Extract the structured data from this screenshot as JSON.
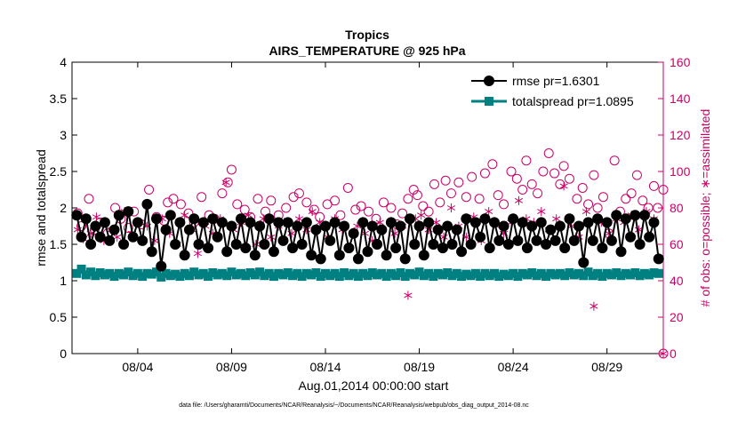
{
  "chart_data": {
    "type": "line",
    "title": "Tropics",
    "subtitle": "AIRS_TEMPERATURE @ 925 hPa",
    "xlabel": "Aug.01,2014 00:00:00 start",
    "ylabel": "rmse and totalspread",
    "y2label": "# of obs: o=possible; ∗=assimilated",
    "xlim": [
      0,
      31.5
    ],
    "ylim": [
      0,
      4
    ],
    "y2lim": [
      0,
      160
    ],
    "x_tick_values": [
      3.5,
      8.5,
      13.5,
      18.5,
      23.5,
      28.5
    ],
    "x_tick_labels": [
      "08/04",
      "08/09",
      "08/14",
      "08/19",
      "08/24",
      "08/29"
    ],
    "y_tick_labels": [
      "0",
      "0.5",
      "1",
      "1.5",
      "2",
      "2.5",
      "3",
      "3.5",
      "4"
    ],
    "y2_tick_labels": [
      "0",
      "20",
      "40",
      "60",
      "80",
      "100",
      "120",
      "140",
      "160"
    ],
    "legend_position": "top-right",
    "series": [
      {
        "name": "rmse pr=1.6301",
        "color": "#000000",
        "marker": "circle",
        "x": [
          0.25,
          0.5,
          0.75,
          1,
          1.25,
          1.5,
          1.75,
          2,
          2.25,
          2.5,
          2.75,
          3,
          3.25,
          3.5,
          3.75,
          4,
          4.25,
          4.5,
          4.75,
          5,
          5.25,
          5.5,
          5.75,
          6,
          6.25,
          6.5,
          6.75,
          7,
          7.25,
          7.5,
          7.75,
          8,
          8.25,
          8.5,
          8.75,
          9,
          9.25,
          9.5,
          9.75,
          10,
          10.25,
          10.5,
          10.75,
          11,
          11.25,
          11.5,
          11.75,
          12,
          12.25,
          12.5,
          12.75,
          13,
          13.25,
          13.5,
          13.75,
          14,
          14.25,
          14.5,
          14.75,
          15,
          15.25,
          15.5,
          15.75,
          16,
          16.25,
          16.5,
          16.75,
          17,
          17.25,
          17.5,
          17.75,
          18,
          18.25,
          18.5,
          18.75,
          19,
          19.25,
          19.5,
          19.75,
          20,
          20.25,
          20.5,
          20.75,
          21,
          21.25,
          21.5,
          21.75,
          22,
          22.25,
          22.5,
          22.75,
          23,
          23.25,
          23.5,
          23.75,
          24,
          24.25,
          24.5,
          24.75,
          25,
          25.25,
          25.5,
          25.75,
          26,
          26.25,
          26.5,
          26.75,
          27,
          27.25,
          27.5,
          27.75,
          28,
          28.25,
          28.5,
          28.75,
          29,
          29.25,
          29.5,
          29.75,
          30,
          30.25,
          30.5,
          30.75,
          31,
          31.25
        ],
        "values": [
          1.9,
          1.6,
          1.85,
          1.5,
          1.75,
          1.6,
          1.8,
          1.55,
          1.7,
          1.9,
          1.5,
          1.95,
          1.6,
          1.8,
          1.55,
          2.05,
          1.4,
          1.85,
          1.2,
          1.7,
          1.9,
          1.5,
          1.8,
          1.35,
          1.7,
          1.85,
          1.5,
          1.8,
          1.45,
          1.85,
          1.6,
          1.8,
          1.4,
          1.75,
          1.5,
          1.85,
          1.45,
          1.8,
          1.35,
          1.75,
          1.5,
          1.85,
          1.4,
          1.8,
          1.55,
          1.8,
          1.45,
          1.75,
          1.5,
          1.8,
          1.35,
          1.7,
          1.3,
          1.75,
          1.55,
          1.8,
          1.35,
          1.75,
          1.45,
          1.65,
          1.3,
          1.8,
          1.4,
          1.75,
          1.5,
          1.7,
          1.35,
          1.8,
          1.45,
          1.75,
          1.3,
          1.85,
          1.5,
          1.75,
          1.35,
          1.8,
          1.5,
          1.7,
          1.45,
          1.75,
          1.5,
          1.7,
          1.4,
          1.85,
          1.5,
          1.8,
          1.6,
          1.85,
          1.45,
          1.8,
          1.55,
          1.75,
          1.5,
          1.85,
          1.55,
          1.8,
          1.45,
          1.75,
          1.55,
          1.8,
          1.5,
          1.7,
          1.55,
          1.75,
          1.45,
          1.85,
          1.55,
          1.75,
          1.25,
          1.8,
          1.55,
          1.85,
          1.45,
          1.8,
          1.55,
          1.9,
          1.4,
          1.85,
          1.6,
          1.9,
          1.5,
          1.9,
          1.6,
          1.8,
          1.3
        ]
      },
      {
        "name": "totalspread pr=1.0895",
        "color": "#008080",
        "marker": "square",
        "x": [
          0.25,
          0.5,
          0.75,
          1,
          1.25,
          1.5,
          1.75,
          2,
          2.25,
          2.5,
          2.75,
          3,
          3.25,
          3.5,
          3.75,
          4,
          4.25,
          4.5,
          4.75,
          5,
          5.25,
          5.5,
          5.75,
          6,
          6.25,
          6.5,
          6.75,
          7,
          7.25,
          7.5,
          7.75,
          8,
          8.25,
          8.5,
          8.75,
          9,
          9.25,
          9.5,
          9.75,
          10,
          10.25,
          10.5,
          10.75,
          11,
          11.25,
          11.5,
          11.75,
          12,
          12.25,
          12.5,
          12.75,
          13,
          13.25,
          13.5,
          13.75,
          14,
          14.25,
          14.5,
          14.75,
          15,
          15.25,
          15.5,
          15.75,
          16,
          16.25,
          16.5,
          16.75,
          17,
          17.25,
          17.5,
          17.75,
          18,
          18.25,
          18.5,
          18.75,
          19,
          19.25,
          19.5,
          19.75,
          20,
          20.25,
          20.5,
          20.75,
          21,
          21.25,
          21.5,
          21.75,
          22,
          22.25,
          22.5,
          22.75,
          23,
          23.25,
          23.5,
          23.75,
          24,
          24.25,
          24.5,
          24.75,
          25,
          25.25,
          25.5,
          25.75,
          26,
          26.25,
          26.5,
          26.75,
          27,
          27.25,
          27.5,
          27.75,
          28,
          28.25,
          28.5,
          28.75,
          29,
          29.25,
          29.5,
          29.75,
          30,
          30.25,
          30.5,
          30.75,
          31,
          31.25
        ],
        "values": [
          1.1,
          1.16,
          1.08,
          1.12,
          1.07,
          1.11,
          1.08,
          1.1,
          1.06,
          1.1,
          1.08,
          1.12,
          1.07,
          1.1,
          1.06,
          1.1,
          1.09,
          1.12,
          1.05,
          1.1,
          1.07,
          1.09,
          1.06,
          1.1,
          1.07,
          1.12,
          1.08,
          1.1,
          1.06,
          1.11,
          1.08,
          1.1,
          1.07,
          1.12,
          1.08,
          1.1,
          1.07,
          1.11,
          1.08,
          1.12,
          1.07,
          1.1,
          1.06,
          1.1,
          1.08,
          1.11,
          1.07,
          1.1,
          1.06,
          1.1,
          1.08,
          1.11,
          1.06,
          1.1,
          1.07,
          1.1,
          1.06,
          1.11,
          1.07,
          1.1,
          1.06,
          1.1,
          1.07,
          1.11,
          1.08,
          1.1,
          1.06,
          1.1,
          1.07,
          1.11,
          1.06,
          1.1,
          1.08,
          1.12,
          1.07,
          1.1,
          1.06,
          1.1,
          1.08,
          1.11,
          1.07,
          1.1,
          1.06,
          1.09,
          1.07,
          1.1,
          1.06,
          1.1,
          1.07,
          1.1,
          1.06,
          1.09,
          1.07,
          1.1,
          1.06,
          1.1,
          1.08,
          1.11,
          1.07,
          1.1,
          1.06,
          1.1,
          1.08,
          1.1,
          1.07,
          1.11,
          1.08,
          1.1,
          1.07,
          1.12,
          1.07,
          1.1,
          1.06,
          1.1,
          1.08,
          1.11,
          1.07,
          1.1,
          1.08,
          1.11,
          1.07,
          1.1,
          1.08,
          1.11,
          1.1
        ]
      },
      {
        "name": "# of obs possible",
        "axis": "right",
        "color": "#cc0066",
        "marker": "open-circle",
        "x": [
          0.3,
          0.5,
          0.9,
          1.2,
          1.5,
          1.9,
          2.3,
          2.6,
          3,
          3.3,
          3.7,
          4.1,
          4.5,
          4.9,
          5.1,
          5.4,
          5.8,
          6.2,
          6.5,
          6.9,
          7.3,
          7.6,
          8,
          8.3,
          8.5,
          8.8,
          9.2,
          9.5,
          9.9,
          10.3,
          10.6,
          11,
          11.4,
          11.8,
          12.1,
          12.5,
          12.9,
          13.2,
          13.6,
          14,
          14.3,
          14.7,
          15.1,
          15.4,
          15.8,
          16.2,
          16.6,
          17,
          17.3,
          17.6,
          17.9,
          18.2,
          18.4,
          18.7,
          19,
          19.3,
          19.6,
          19.9,
          20.2,
          20.6,
          21,
          21.3,
          21.7,
          22,
          22.4,
          22.7,
          23,
          23.4,
          23.7,
          24,
          24.2,
          24.5,
          24.8,
          25.1,
          25.4,
          25.7,
          26,
          26.2,
          26.5,
          26.9,
          27.2,
          27.5,
          27.8,
          28,
          28.3,
          28.6,
          28.9,
          29.2,
          29.5,
          29.8,
          30.1,
          30.4,
          30.7,
          31,
          31.2,
          31.5
        ],
        "values": [
          77,
          70,
          85,
          68,
          72,
          66,
          80,
          74,
          69,
          78,
          71,
          90,
          75,
          73,
          83,
          85,
          82,
          77,
          72,
          86,
          76,
          74,
          88,
          94,
          101,
          82,
          79,
          75,
          85,
          78,
          84,
          76,
          80,
          86,
          88,
          83,
          79,
          75,
          82,
          84,
          76,
          91,
          79,
          81,
          78,
          74,
          83,
          80,
          71,
          77,
          85,
          90,
          87,
          81,
          78,
          93,
          83,
          95,
          88,
          94,
          86,
          97,
          85,
          99,
          104,
          87,
          82,
          100,
          96,
          90,
          106,
          93,
          88,
          100,
          110,
          99,
          93,
          103,
          96,
          85,
          91,
          82,
          98,
          80,
          86,
          66,
          106,
          78,
          85,
          88,
          98,
          84,
          80,
          92,
          80,
          90
        ]
      },
      {
        "name": "# of obs assimilated",
        "axis": "right",
        "color": "#cc0066",
        "marker": "asterisk",
        "x": [
          0.3,
          0.6,
          1,
          1.3,
          1.7,
          2.1,
          2.4,
          2.8,
          3.2,
          3.6,
          4,
          4.4,
          4.8,
          5.2,
          5.6,
          6,
          6.4,
          6.7,
          7.1,
          7.5,
          7.9,
          8.2,
          8.6,
          9,
          9.4,
          9.8,
          10.2,
          10.6,
          11,
          11.3,
          11.7,
          12.1,
          12.5,
          12.8,
          13.2,
          13.6,
          14,
          14.4,
          14.8,
          15.2,
          15.6,
          16,
          16.4,
          16.8,
          17.2,
          17.6,
          17.9,
          18.3,
          18.6,
          19,
          19.4,
          19.8,
          20.2,
          20.6,
          21,
          21.4,
          21.8,
          22.2,
          22.6,
          23,
          23.4,
          23.8,
          24.2,
          24.6,
          25,
          25.4,
          25.8,
          26.2,
          26.6,
          27,
          27.4,
          27.8,
          28.2,
          28.6,
          29,
          29.4,
          29.8,
          30.2,
          30.6,
          31
        ],
        "values": [
          68,
          63,
          66,
          75,
          62,
          68,
          64,
          78,
          66,
          72,
          70,
          62,
          74,
          66,
          60,
          76,
          68,
          55,
          70,
          66,
          74,
          94,
          68,
          72,
          76,
          60,
          74,
          64,
          70,
          72,
          66,
          74,
          68,
          78,
          72,
          64,
          74,
          68,
          58,
          70,
          66,
          62,
          72,
          54,
          66,
          70,
          32,
          74,
          76,
          68,
          72,
          64,
          80,
          70,
          64,
          75,
          62,
          78,
          70,
          66,
          72,
          84,
          74,
          72,
          78,
          68,
          74,
          92,
          70,
          64,
          78,
          26,
          72,
          66,
          74,
          72,
          76,
          68,
          78,
          74
        ]
      }
    ]
  },
  "footer": {
    "data_file": "data file: /Users/gharamti/Documents/NCAR/Reanalysis/~/Documents/NCAR/Reanalysis/webpub/obs_diag_output_2014-08.nc"
  }
}
